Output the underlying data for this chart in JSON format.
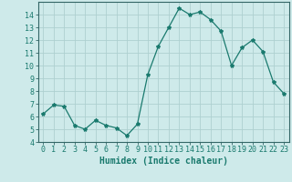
{
  "x": [
    0,
    1,
    2,
    3,
    4,
    5,
    6,
    7,
    8,
    9,
    10,
    11,
    12,
    13,
    14,
    15,
    16,
    17,
    18,
    19,
    20,
    21,
    22,
    23
  ],
  "y": [
    6.2,
    6.9,
    6.8,
    5.3,
    5.0,
    5.7,
    5.3,
    5.1,
    4.5,
    5.4,
    9.3,
    11.5,
    13.0,
    14.5,
    14.0,
    14.2,
    13.6,
    12.7,
    10.0,
    11.4,
    12.0,
    11.1,
    8.7,
    7.8
  ],
  "line_color": "#1a7a6e",
  "marker": "*",
  "marker_size": 3,
  "bg_color": "#ceeaea",
  "grid_color": "#aed0d0",
  "spine_color": "#336666",
  "xlabel": "Humidex (Indice chaleur)",
  "xlabel_fontsize": 7,
  "tick_fontsize": 6,
  "xlim": [
    -0.5,
    23.5
  ],
  "ylim": [
    4,
    15.0
  ],
  "yticks": [
    4,
    5,
    6,
    7,
    8,
    9,
    10,
    11,
    12,
    13,
    14
  ],
  "xticks": [
    0,
    1,
    2,
    3,
    4,
    5,
    6,
    7,
    8,
    9,
    10,
    11,
    12,
    13,
    14,
    15,
    16,
    17,
    18,
    19,
    20,
    21,
    22,
    23
  ]
}
